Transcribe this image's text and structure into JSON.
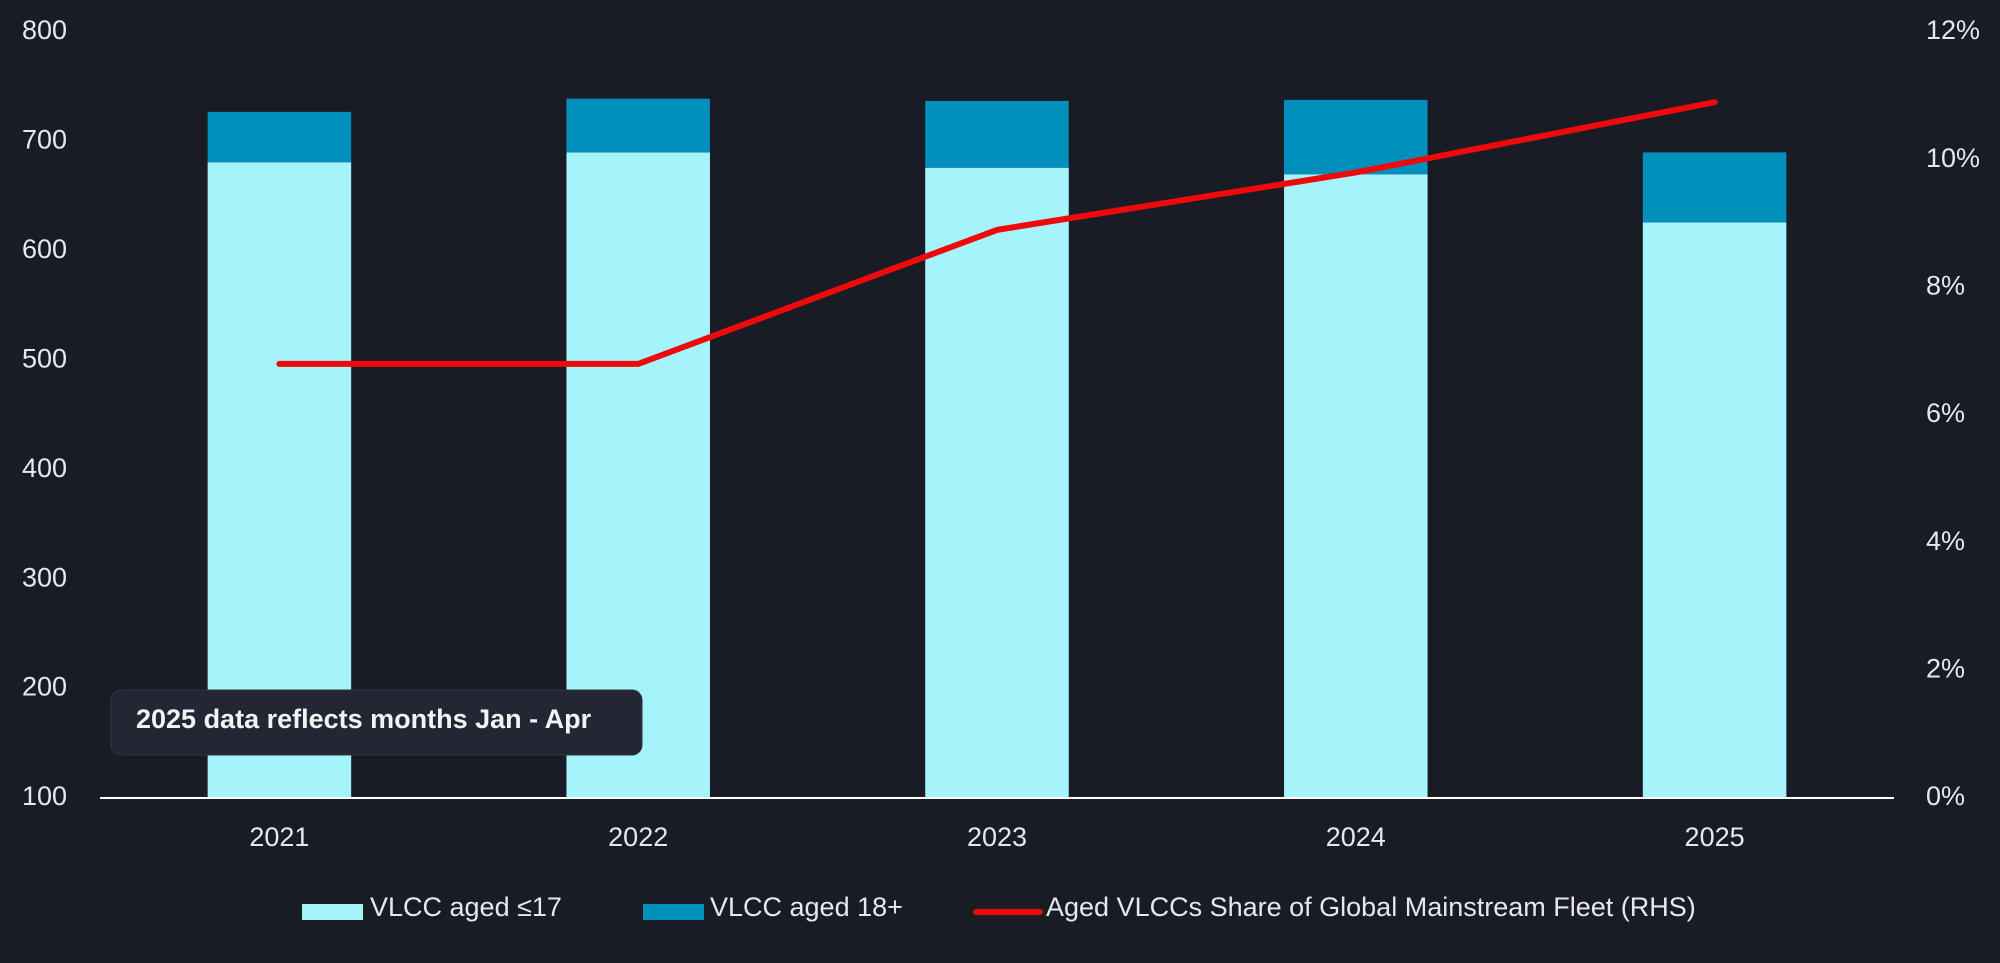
{
  "chart_data": {
    "type": "bar",
    "categories": [
      "2021",
      "2022",
      "2023",
      "2024",
      "2025"
    ],
    "series": [
      {
        "name": "VLCC aged ≤17",
        "color": "#a6f4fb",
        "values": [
          681,
          690,
          676,
          670,
          626
        ]
      },
      {
        "name": "VLCC aged 18+",
        "color": "#0090bb",
        "values": [
          46,
          49,
          61,
          68,
          64
        ]
      },
      {
        "name": "Aged VLCCs Share of Global Mainstream Fleet (RHS)",
        "color": "#ee0a0a",
        "type": "line",
        "axis": "y2",
        "values": [
          6.8,
          6.8,
          8.9,
          9.8,
          10.9
        ]
      }
    ],
    "stacked": true,
    "ylim": [
      100,
      800
    ],
    "yticks": [
      100,
      200,
      300,
      400,
      500,
      600,
      700,
      800
    ],
    "y2lim": [
      0,
      12
    ],
    "y2ticks": [
      {
        "value": 0,
        "label": "0%"
      },
      {
        "value": 2,
        "label": "2%"
      },
      {
        "value": 4,
        "label": "4%"
      },
      {
        "value": 6,
        "label": "6%"
      },
      {
        "value": 8,
        "label": "8%"
      },
      {
        "value": 10,
        "label": "10%"
      },
      {
        "value": 12,
        "label": "12%"
      }
    ],
    "annotation": "2025 data reflects months Jan - Apr",
    "legend": "bottom",
    "grid": false
  }
}
